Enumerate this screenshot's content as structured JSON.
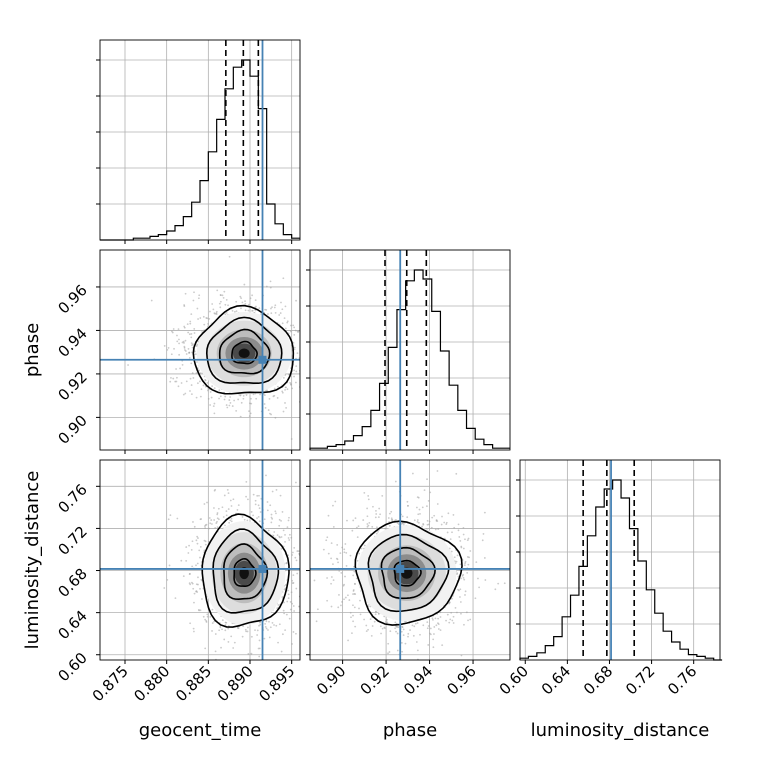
{
  "chart_data": {
    "type": "corner",
    "parameters": [
      {
        "name": "geocent_time",
        "label": "geocent_time",
        "lim": [
          0.872,
          0.896
        ],
        "ticks": [
          0.875,
          0.88,
          0.885,
          0.89,
          0.895
        ],
        "tick_labels": [
          "0.875",
          "0.880",
          "0.885",
          "0.890",
          "0.895"
        ],
        "quantiles": [
          0.8871,
          0.8892,
          0.891
        ],
        "injection": 0.8915,
        "histogram": {
          "bin_edges": [
            0.872,
            0.873,
            0.874,
            0.875,
            0.876,
            0.877,
            0.878,
            0.879,
            0.88,
            0.881,
            0.882,
            0.883,
            0.884,
            0.885,
            0.886,
            0.887,
            0.888,
            0.889,
            0.89,
            0.891,
            0.892,
            0.893,
            0.894,
            0.895,
            0.896
          ],
          "counts": [
            0,
            0,
            0,
            0,
            1,
            1,
            2,
            3,
            5,
            8,
            13,
            21,
            33,
            49,
            67,
            84,
            96,
            100,
            91,
            73,
            20,
            9,
            3,
            1
          ]
        }
      },
      {
        "name": "phase",
        "label": "phase",
        "lim": [
          0.885,
          0.977
        ],
        "ticks": [
          0.9,
          0.92,
          0.94,
          0.96
        ],
        "tick_labels": [
          "0.90",
          "0.92",
          "0.94",
          "0.96"
        ],
        "quantiles": [
          0.9195,
          0.9295,
          0.9385
        ],
        "injection": 0.9265,
        "histogram": {
          "bin_edges": [
            0.885,
            0.889,
            0.893,
            0.897,
            0.901,
            0.905,
            0.909,
            0.913,
            0.917,
            0.921,
            0.925,
            0.929,
            0.933,
            0.937,
            0.941,
            0.945,
            0.949,
            0.953,
            0.957,
            0.961,
            0.965,
            0.969,
            0.973,
            0.977
          ],
          "counts": [
            1,
            1,
            2,
            3,
            5,
            8,
            13,
            22,
            37,
            57,
            78,
            94,
            100,
            95,
            77,
            55,
            36,
            22,
            12,
            6,
            3,
            1,
            1
          ]
        }
      },
      {
        "name": "luminosity_distance",
        "label": "luminosity_distance",
        "lim": [
          0.595,
          0.785
        ],
        "ticks": [
          0.6,
          0.64,
          0.68,
          0.72,
          0.76
        ],
        "tick_labels": [
          "0.60",
          "0.64",
          "0.68",
          "0.72",
          "0.76"
        ],
        "quantiles": [
          0.655,
          0.6775,
          0.7035
        ],
        "injection": 0.6815,
        "histogram": {
          "bin_edges": [
            0.595,
            0.603,
            0.611,
            0.619,
            0.627,
            0.635,
            0.643,
            0.651,
            0.659,
            0.667,
            0.675,
            0.683,
            0.691,
            0.699,
            0.707,
            0.715,
            0.723,
            0.731,
            0.739,
            0.747,
            0.755,
            0.763,
            0.771,
            0.779,
            0.787
          ],
          "counts": [
            1,
            2,
            4,
            8,
            13,
            24,
            36,
            52,
            69,
            85,
            95,
            100,
            90,
            73,
            55,
            39,
            26,
            16,
            10,
            6,
            3,
            2,
            1,
            0
          ]
        }
      }
    ],
    "pairs": [
      {
        "x": "geocent_time",
        "y": "phase",
        "mean": [
          0.8893,
          0.9295
        ],
        "std": [
          0.003,
          0.01
        ],
        "contour_levels": [
          0.5,
          1.0,
          1.5,
          2.0
        ],
        "injection": [
          0.8915,
          0.9265
        ]
      },
      {
        "x": "geocent_time",
        "y": "luminosity_distance",
        "mean": [
          0.8893,
          0.6775
        ],
        "std": [
          0.0026,
          0.026
        ],
        "contour_levels": [
          0.5,
          1.0,
          1.5,
          2.0
        ],
        "injection": [
          0.8915,
          0.6815
        ]
      },
      {
        "x": "phase",
        "y": "luminosity_distance",
        "mean": [
          0.9295,
          0.6775
        ],
        "std": [
          0.012,
          0.024
        ],
        "contour_levels": [
          0.5,
          1.0,
          1.5,
          2.0
        ],
        "injection": [
          0.9265,
          0.6815
        ]
      }
    ],
    "grid": true,
    "colors": {
      "injection": "#4682b4",
      "histogram": "#000000",
      "contours": "#000000",
      "samples": "#a0a0a0",
      "grid": "#b0b0b0"
    }
  }
}
